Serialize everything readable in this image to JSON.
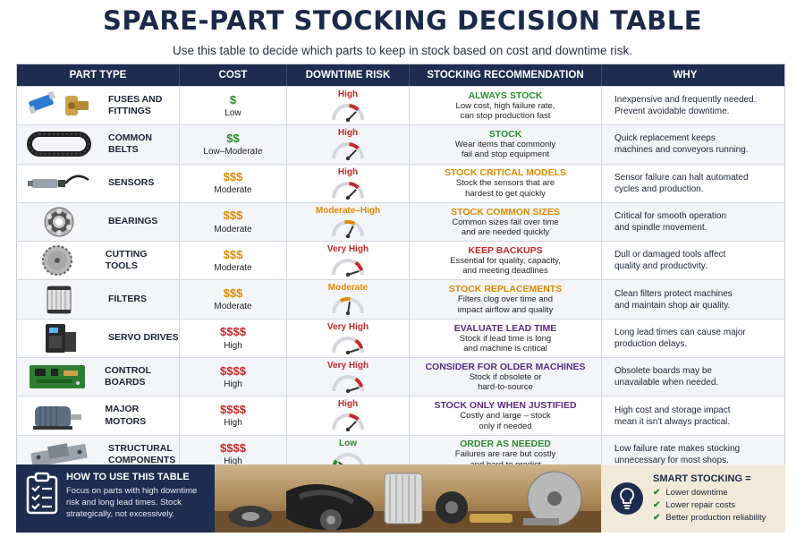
{
  "header": {
    "title": "SPARE-PART STOCKING DECISION TABLE",
    "subtitle": "Use this table to decide which parts to keep in stock based on cost and downtime risk."
  },
  "columns": [
    "PART TYPE",
    "COST",
    "DOWNTIME RISK",
    "STOCKING RECOMMENDATION",
    "WHY"
  ],
  "colors": {
    "navy": "#1c2d4f",
    "green": "#2e8b2e",
    "orange": "#e08a00",
    "red": "#c62828",
    "purple": "#5b2a86"
  },
  "rows": [
    {
      "part": "FUSES AND\nFITTINGS",
      "icon": "fuse-fittings-icon",
      "cost_symbol": "$",
      "cost_label": "Low",
      "cost_color": "#2e8b2e",
      "risk_label": "High",
      "risk_color": "#c62828",
      "risk_level": 0.75,
      "rec_title": "ALWAYS STOCK",
      "rec_color": "#2e8b2e",
      "rec_text": "Low cost, high failure rate,\ncan stop production fast",
      "why": "Inexpensive and frequently needed.\nPrevent avoidable downtime."
    },
    {
      "part": "COMMON\nBELTS",
      "icon": "belt-icon",
      "cost_symbol": "$$",
      "cost_label": "Low–Moderate",
      "cost_color": "#2e8b2e",
      "risk_label": "High",
      "risk_color": "#c62828",
      "risk_level": 0.75,
      "rec_title": "STOCK",
      "rec_color": "#2e8b2e",
      "rec_text": "Wear items that commonly\nfail and stop equipment",
      "why": "Quick replacement keeps\nmachines and conveyors running."
    },
    {
      "part": "SENSORS",
      "icon": "sensor-icon",
      "cost_symbol": "$$$",
      "cost_label": "Moderate",
      "cost_color": "#e08a00",
      "risk_label": "High",
      "risk_color": "#c62828",
      "risk_level": 0.75,
      "rec_title": "STOCK CRITICAL MODELS",
      "rec_color": "#e08a00",
      "rec_text": "Stock the sensors that are\nhardest to get quickly",
      "why": "Sensor failure can halt automated\ncycles and production."
    },
    {
      "part": "BEARINGS",
      "icon": "bearing-icon",
      "cost_symbol": "$$$",
      "cost_label": "Moderate",
      "cost_color": "#e08a00",
      "risk_label": "Moderate–High",
      "risk_color": "#e08a00",
      "risk_level": 0.65,
      "rec_title": "STOCK COMMON SIZES",
      "rec_color": "#e08a00",
      "rec_text": "Common sizes fail over time\nand are needed quickly",
      "why": "Critical for smooth operation\nand spindle movement."
    },
    {
      "part": "CUTTING TOOLS",
      "icon": "saw-blade-icon",
      "cost_symbol": "$$$",
      "cost_label": "Moderate",
      "cost_color": "#e08a00",
      "risk_label": "Very High",
      "risk_color": "#c62828",
      "risk_level": 0.9,
      "rec_title": "KEEP BACKUPS",
      "rec_color": "#c62828",
      "rec_text": "Essential for quality, capacity,\nand meeting deadlines",
      "why": "Dull or damaged tools affect\nquality and productivity."
    },
    {
      "part": "FILTERS",
      "icon": "filter-icon",
      "cost_symbol": "$$$",
      "cost_label": "Moderate",
      "cost_color": "#e08a00",
      "risk_label": "Moderate",
      "risk_color": "#e08a00",
      "risk_level": 0.55,
      "rec_title": "STOCK REPLACEMENTS",
      "rec_color": "#e08a00",
      "rec_text": "Filters clog over time and\nimpact airflow and quality",
      "why": "Clean filters protect machines\nand maintain shop air quality."
    },
    {
      "part": "SERVO DRIVES",
      "icon": "servo-drive-icon",
      "cost_symbol": "$$$$",
      "cost_label": "High",
      "cost_color": "#c62828",
      "risk_label": "Very High",
      "risk_color": "#c62828",
      "risk_level": 0.9,
      "rec_title": "EVALUATE LEAD TIME",
      "rec_color": "#5b2a86",
      "rec_text": "Stock if lead time is long\nand machine is critical",
      "why": "Long lead times can cause major\nproduction delays."
    },
    {
      "part": "CONTROL BOARDS",
      "icon": "circuit-board-icon",
      "cost_symbol": "$$$$",
      "cost_label": "High",
      "cost_color": "#c62828",
      "risk_label": "Very High",
      "risk_color": "#c62828",
      "risk_level": 0.9,
      "rec_title": "CONSIDER FOR OLDER MACHINES",
      "rec_color": "#5b2a86",
      "rec_text": "Stock if obsolete or\nhard-to-source",
      "why": "Obsolete boards may be\nunavailable when needed."
    },
    {
      "part": "MAJOR MOTORS",
      "icon": "motor-icon",
      "cost_symbol": "$$$$",
      "cost_label": "High",
      "cost_color": "#c62828",
      "risk_label": "High",
      "risk_color": "#c62828",
      "risk_level": 0.75,
      "rec_title": "STOCK ONLY WHEN JUSTIFIED",
      "rec_color": "#5b2a86",
      "rec_text": "Costly and large – stock\nonly if needed",
      "why": "High cost and storage impact\nmean it isn't always practical."
    },
    {
      "part": "STRUCTURAL\nCOMPONENTS",
      "icon": "structural-bracket-icon",
      "cost_symbol": "$$$$",
      "cost_label": "High",
      "cost_color": "#c62828",
      "risk_label": "Low",
      "risk_color": "#2e8b2e",
      "risk_level": 0.2,
      "rec_title": "ORDER AS NEEDED",
      "rec_color": "#2e8b2e",
      "rec_text": "Failures are rare but costly\nand hard to predict",
      "why": "Low failure rate makes stocking\nunnecessary for most shops."
    }
  ],
  "howto": {
    "title": "HOW TO USE THIS TABLE",
    "text": "Focus on parts with high downtime risk and long lead times. Stock strategically, not excessively.",
    "icon": "clipboard-checklist-icon"
  },
  "smart": {
    "title": "SMART STOCKING =",
    "icon": "lightbulb-icon",
    "items": [
      "Lower downtime",
      "Lower repair costs",
      "Better production reliability"
    ]
  }
}
